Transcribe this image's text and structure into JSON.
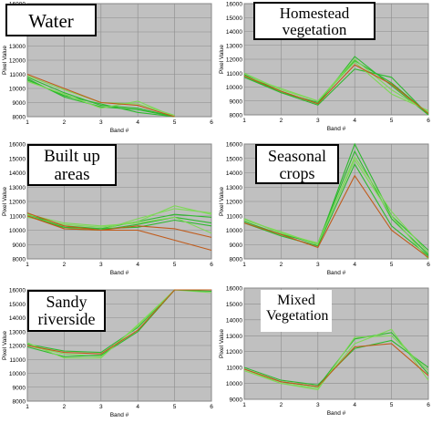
{
  "chart_data": [
    {
      "type": "line",
      "title": "Water",
      "xlabel": "Band #",
      "ylabel": "Pixel Value",
      "x_ticks": [
        "1",
        "2",
        "3",
        "4",
        "5",
        "6"
      ],
      "y_ticks": [
        "8000",
        "9000",
        "10000",
        "11000",
        "12000",
        "13000",
        "14000",
        "15000",
        "16000"
      ],
      "ylim": [
        8000,
        16000
      ],
      "xlim": [
        1,
        6
      ],
      "series": [
        {
          "color": "#2dba2d",
          "values": [
            10800,
            9700,
            8800,
            8600,
            8000
          ]
        },
        {
          "color": "#2dba2d",
          "values": [
            10600,
            9500,
            8900,
            8300,
            8000
          ]
        },
        {
          "color": "#7ed957",
          "values": [
            10900,
            9900,
            9000,
            8900,
            8100
          ]
        },
        {
          "color": "#2dba2d",
          "values": [
            10700,
            9400,
            8700,
            8500,
            8000
          ]
        },
        {
          "color": "#7ed957",
          "values": [
            10500,
            9600,
            8600,
            9100,
            8000
          ]
        },
        {
          "color": "#c05a1a",
          "values": [
            11000,
            10000,
            9000,
            8800,
            8000
          ]
        }
      ]
    },
    {
      "type": "line",
      "title": "Homestead vegetation",
      "xlabel": "Band #",
      "ylabel": "Pixel Value",
      "x_ticks": [
        "1",
        "2",
        "3",
        "4",
        "5",
        "6"
      ],
      "y_ticks": [
        "8000",
        "9000",
        "10000",
        "11000",
        "12000",
        "13000",
        "14000",
        "15000",
        "16000"
      ],
      "ylim": [
        8000,
        16000
      ],
      "xlim": [
        1,
        6
      ],
      "series": [
        {
          "color": "#2dba2d",
          "values": [
            10900,
            9700,
            8800,
            12200,
            10100,
            8000
          ]
        },
        {
          "color": "#2dba2d",
          "values": [
            10800,
            9600,
            8900,
            11900,
            10300,
            8100
          ]
        },
        {
          "color": "#7ed957",
          "values": [
            11000,
            9800,
            9000,
            12000,
            9800,
            8200
          ]
        },
        {
          "color": "#2dba2d",
          "values": [
            10700,
            9600,
            8700,
            11300,
            10700,
            8000
          ]
        },
        {
          "color": "#7ed957",
          "values": [
            10800,
            9900,
            9000,
            11800,
            9500,
            8300
          ]
        },
        {
          "color": "#c05a1a",
          "values": [
            10800,
            9700,
            8800,
            11600,
            10200,
            8100
          ]
        }
      ]
    },
    {
      "type": "line",
      "title": "Built up areas",
      "xlabel": "Band #",
      "ylabel": "Pixel Value",
      "x_ticks": [
        "1",
        "2",
        "3",
        "4",
        "5",
        "6"
      ],
      "y_ticks": [
        "8000",
        "9000",
        "10000",
        "11000",
        "12000",
        "13000",
        "14000",
        "15000",
        "16000"
      ],
      "ylim": [
        8000,
        16000
      ],
      "xlim": [
        1,
        6
      ],
      "series": [
        {
          "color": "#2dba2d",
          "values": [
            11100,
            10300,
            10100,
            10600,
            11100,
            10900
          ]
        },
        {
          "color": "#7ed957",
          "values": [
            11000,
            10200,
            10000,
            10800,
            11500,
            11200
          ]
        },
        {
          "color": "#2dba2d",
          "values": [
            11200,
            10100,
            10000,
            10400,
            10900,
            10500
          ]
        },
        {
          "color": "#7ed957",
          "values": [
            10900,
            10400,
            10200,
            10600,
            11700,
            11100
          ]
        },
        {
          "color": "#2dba2d",
          "values": [
            11000,
            10200,
            10100,
            10200,
            10700,
            10300
          ]
        },
        {
          "color": "#7ed957",
          "values": [
            11100,
            10500,
            10300,
            10500,
            10900,
            9800
          ]
        },
        {
          "color": "#c05a1a",
          "values": [
            11200,
            10300,
            10000,
            10000,
            9300,
            8600
          ]
        },
        {
          "color": "#c05a1a",
          "values": [
            11000,
            10100,
            10000,
            10300,
            10100,
            9500
          ]
        }
      ]
    },
    {
      "type": "line",
      "title": "Seasonal crops",
      "xlabel": "Band #",
      "ylabel": "Pixel Value",
      "x_ticks": [
        "1",
        "2",
        "3",
        "4",
        "5",
        "6"
      ],
      "y_ticks": [
        "8000",
        "9000",
        "10000",
        "11000",
        "12000",
        "13000",
        "14000",
        "15000",
        "16000"
      ],
      "ylim": [
        8000,
        16000
      ],
      "xlim": [
        1,
        6
      ],
      "series": [
        {
          "color": "#2dba2d",
          "values": [
            10800,
            9800,
            9000,
            16000,
            11000,
            8600
          ]
        },
        {
          "color": "#2dba2d",
          "values": [
            10600,
            9700,
            9100,
            15500,
            10800,
            8300
          ]
        },
        {
          "color": "#7ed957",
          "values": [
            10700,
            9900,
            9000,
            15100,
            11300,
            8400
          ]
        },
        {
          "color": "#2dba2d",
          "values": [
            10500,
            9600,
            8900,
            14600,
            10300,
            8200
          ]
        },
        {
          "color": "#7ed957",
          "values": [
            10800,
            9800,
            9100,
            14900,
            11000,
            8000
          ]
        },
        {
          "color": "#c05a1a",
          "values": [
            10500,
            9700,
            8800,
            13800,
            10000,
            8100
          ]
        }
      ]
    },
    {
      "type": "line",
      "title": "Sandy riverside",
      "xlabel": "Band #",
      "ylabel": "Pixel Value",
      "x_ticks": [
        "1",
        "2",
        "3",
        "4",
        "5",
        "6"
      ],
      "y_ticks": [
        "8000",
        "9000",
        "10000",
        "11000",
        "12000",
        "13000",
        "14000",
        "15000",
        "16000"
      ],
      "ylim": [
        8000,
        16000
      ],
      "xlim": [
        1,
        6
      ],
      "series": [
        {
          "color": "#2dba2d",
          "values": [
            12100,
            11600,
            11500,
            13300,
            16100,
            16200
          ]
        },
        {
          "color": "#7ed957",
          "values": [
            12000,
            11400,
            11200,
            13400,
            16300,
            15800
          ]
        },
        {
          "color": "#2dba2d",
          "values": [
            11900,
            11200,
            11300,
            13000,
            16000,
            15900
          ]
        },
        {
          "color": "#7ed957",
          "values": [
            12200,
            11100,
            11100,
            13500,
            16400,
            16000
          ]
        },
        {
          "color": "#c05a1a",
          "values": [
            12000,
            11500,
            11400,
            13100,
            16100,
            16300
          ]
        }
      ]
    },
    {
      "type": "line",
      "title": "Mixed Vegetation",
      "xlabel": "Band #",
      "ylabel": "Pixel Value",
      "x_ticks": [
        "1",
        "2",
        "3",
        "4",
        "5",
        "6"
      ],
      "y_ticks": [
        "9000",
        "10000",
        "11000",
        "12000",
        "13000",
        "14000",
        "15000",
        "16000"
      ],
      "ylim": [
        9000,
        16000
      ],
      "xlim": [
        1,
        6
      ],
      "series": [
        {
          "color": "#2dba2d",
          "values": [
            10900,
            10100,
            9800,
            12800,
            13200,
            10600
          ]
        },
        {
          "color": "#7ed957",
          "values": [
            10800,
            10000,
            9700,
            12500,
            13400,
            10200
          ]
        },
        {
          "color": "#2dba2d",
          "values": [
            11000,
            10200,
            9900,
            12200,
            12700,
            11000
          ]
        },
        {
          "color": "#7ed957",
          "values": [
            10900,
            10000,
            9600,
            12900,
            13000,
            10800
          ]
        },
        {
          "color": "#c05a1a",
          "values": [
            10900,
            10100,
            9800,
            12300,
            12500,
            10500
          ]
        }
      ]
    }
  ]
}
